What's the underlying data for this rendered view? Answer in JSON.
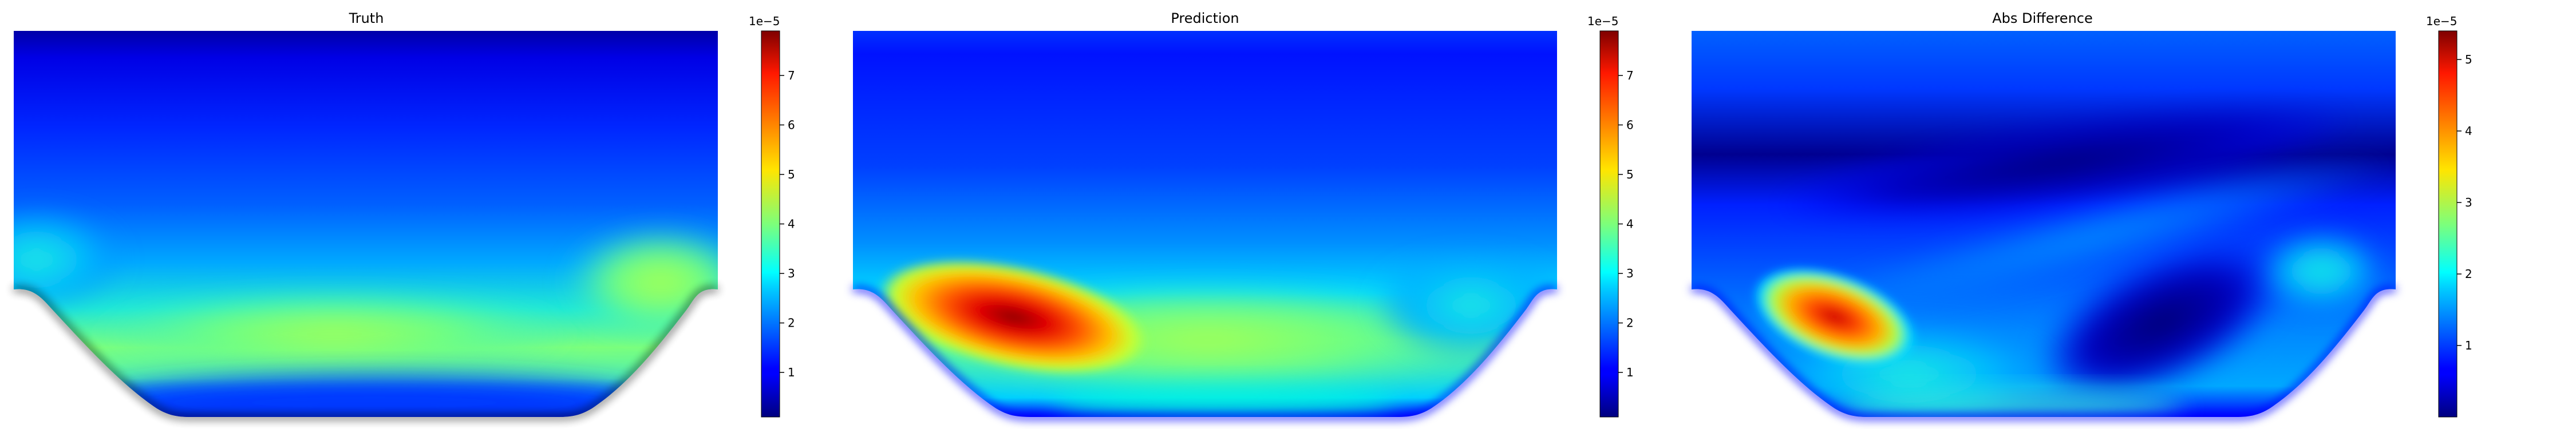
{
  "chart_data": [
    {
      "type": "heatmap",
      "title": "Truth",
      "colormap": "jet",
      "colorbar": {
        "multiplier": "1e−5",
        "ticks": [
          "1",
          "2",
          "3",
          "4",
          "5",
          "6",
          "7"
        ],
        "tick_values": [
          1,
          2,
          3,
          4,
          5,
          6,
          7
        ],
        "range": [
          0.1,
          7.9
        ]
      }
    },
    {
      "type": "heatmap",
      "title": "Prediction",
      "colormap": "jet",
      "colorbar": {
        "multiplier": "1e−5",
        "ticks": [
          "1",
          "2",
          "3",
          "4",
          "5",
          "6",
          "7"
        ],
        "tick_values": [
          1,
          2,
          3,
          4,
          5,
          6,
          7
        ],
        "range": [
          0.1,
          7.9
        ]
      }
    },
    {
      "type": "heatmap",
      "title": "Abs Difference",
      "colormap": "jet",
      "colorbar": {
        "multiplier": "1e−5",
        "ticks": [
          "1",
          "2",
          "3",
          "4",
          "5"
        ],
        "tick_values": [
          1,
          2,
          3,
          4,
          5
        ],
        "range": [
          0.0,
          5.4
        ]
      }
    }
  ]
}
